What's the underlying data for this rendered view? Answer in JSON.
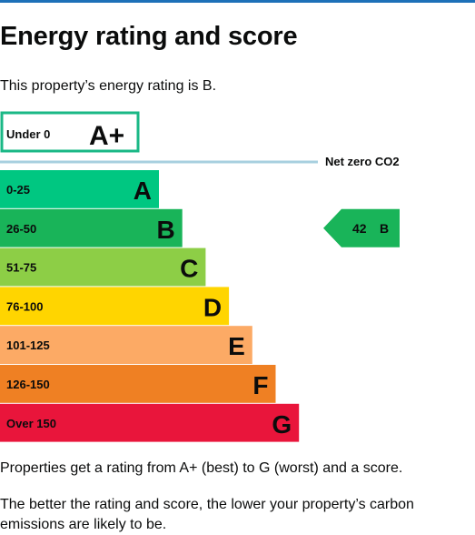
{
  "theme": {
    "top_rule_color": "#1d70b8",
    "text_color": "#0b0c0c",
    "net_zero_line_color": "#a8d0df"
  },
  "page": {
    "title": "Energy rating and score",
    "intro": "This property’s energy rating is B.",
    "footnote_1": "Properties get a rating from A+ (best) to G (worst) and a score.",
    "footnote_2": "The better the rating and score, the lower your property’s carbon emissions are likely to be."
  },
  "chart_data": {
    "type": "bar",
    "bands": [
      {
        "range": "Under 0",
        "letter": "A+",
        "color": "#ffffff",
        "border": "#1ab886",
        "order": 0
      },
      {
        "range": "0-25",
        "letter": "A",
        "color": "#00c781",
        "order": 1
      },
      {
        "range": "26-50",
        "letter": "B",
        "color": "#19b459",
        "order": 2
      },
      {
        "range": "51-75",
        "letter": "C",
        "color": "#8dce46",
        "order": 3
      },
      {
        "range": "76-100",
        "letter": "D",
        "color": "#ffd500",
        "order": 4
      },
      {
        "range": "101-125",
        "letter": "E",
        "color": "#fcaa65",
        "order": 5
      },
      {
        "range": "126-150",
        "letter": "F",
        "color": "#ef8023",
        "order": 6
      },
      {
        "range": "Over 150",
        "letter": "G",
        "color": "#e9153b",
        "order": 7
      }
    ],
    "net_zero_label": "Net zero CO2",
    "current": {
      "score": "42",
      "letter": "B",
      "band_index": 2,
      "color": "#19b459"
    }
  }
}
